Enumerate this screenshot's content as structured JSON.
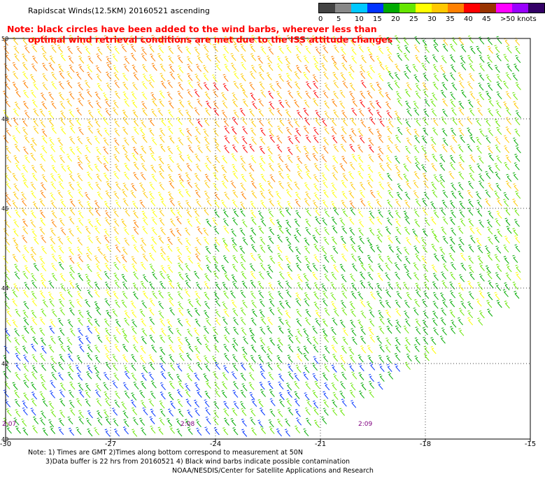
{
  "title": "Rapidscat Winds(12.5KM) 20160521 ascending",
  "note": {
    "line1": "Note: black circles have been added to the wind barbs, wherever less than",
    "line2": "optimal wind retrieval conditions are met due to the ISS attitude changes"
  },
  "legend": {
    "labels": [
      "0",
      "5",
      "10",
      "15",
      "20",
      "25",
      "30",
      "35",
      "40",
      "45",
      ">50 knots"
    ],
    "colors": [
      "#444444",
      "#888888",
      "#00c8ff",
      "#0033ff",
      "#00aa00",
      "#66e600",
      "#ffff00",
      "#ffc800",
      "#ff8000",
      "#ff0000",
      "#993300",
      "#ff00ff",
      "#9900ff",
      "#330066"
    ]
  },
  "axes": {
    "x_labels": [
      "-30",
      "-27",
      "-24",
      "-21",
      "-18",
      "-15"
    ],
    "y_labels": [
      "50",
      "48",
      "46",
      "44",
      "42",
      "40"
    ]
  },
  "times": [
    "2:07",
    "2:08",
    "2:09"
  ],
  "footer": {
    "line1": "Note: 1) Times are GMT 2)Times along bottom correspond to measurement at 50N",
    "line2": "3)Data buffer is 22 hrs from 20160521 4) Black wind barbs indicate possible contamination",
    "line3": "NOAA/NESDIS/Center for Satellite Applications and Research"
  },
  "colors": {
    "note": "#ff0000",
    "times": "#800080",
    "grid": "#000000"
  }
}
